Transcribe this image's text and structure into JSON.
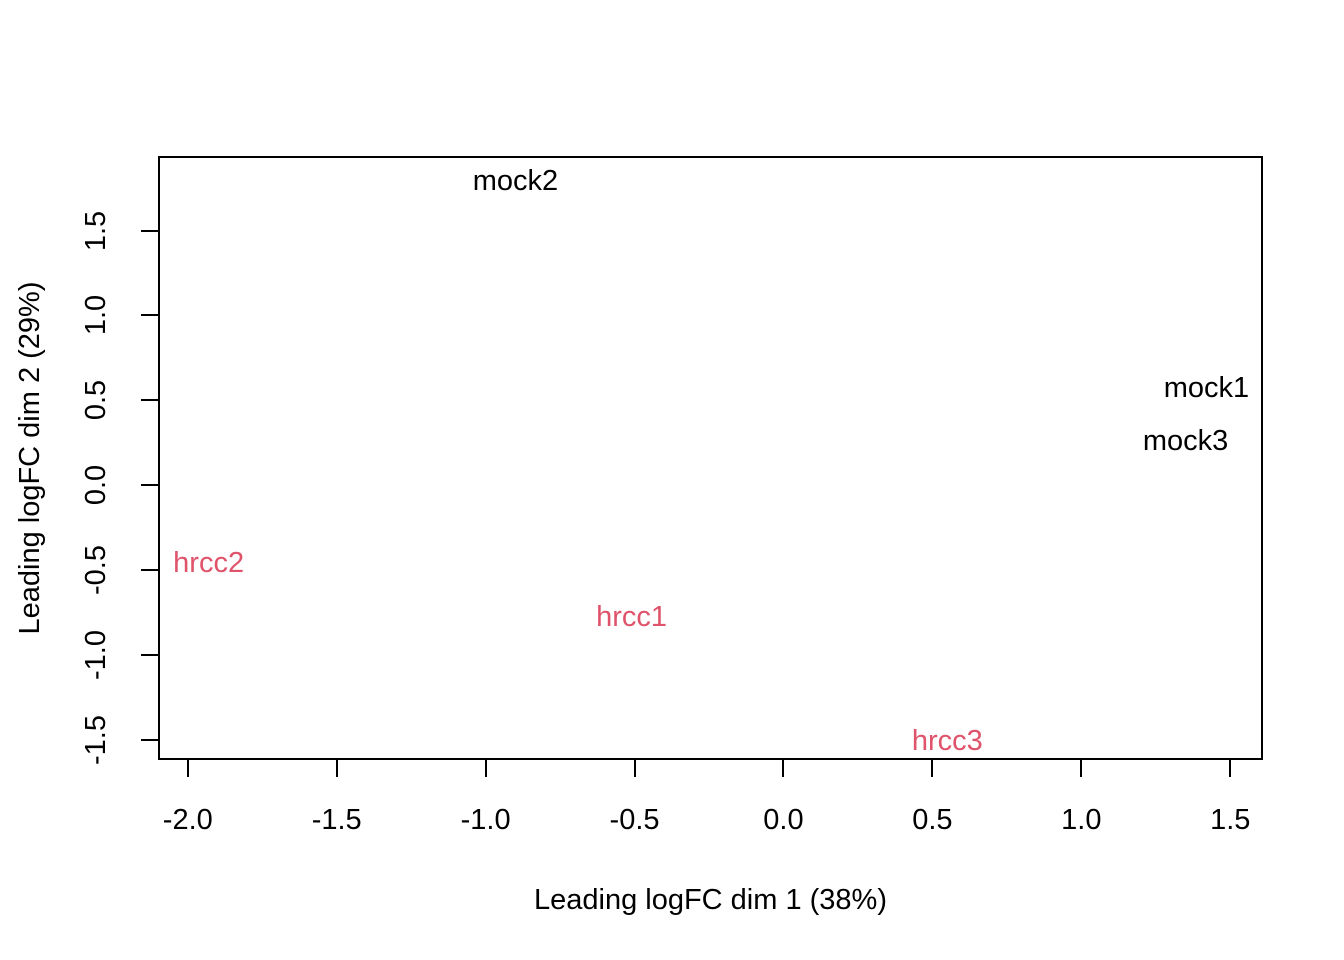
{
  "figure": {
    "background_color": "#ffffff",
    "axis_color": "#000000",
    "text_color": "#000000"
  },
  "chart_data": {
    "type": "scatter",
    "plot_style": "mds-labeled-points",
    "title": "",
    "xlabel": "Leading logFC dim 1 (38%)",
    "ylabel": "Leading logFC dim 2 (29%)",
    "xlim": [
      -2.1,
      1.61
    ],
    "ylim": [
      -1.62,
      1.94
    ],
    "grid": false,
    "legend": null,
    "x_ticks": [
      {
        "value": -2.0,
        "label": "-2.0"
      },
      {
        "value": -1.5,
        "label": "-1.5"
      },
      {
        "value": -1.0,
        "label": "-1.0"
      },
      {
        "value": -0.5,
        "label": "-0.5"
      },
      {
        "value": 0.0,
        "label": "0.0"
      },
      {
        "value": 0.5,
        "label": "0.5"
      },
      {
        "value": 1.0,
        "label": "1.0"
      },
      {
        "value": 1.5,
        "label": "1.5"
      }
    ],
    "y_ticks": [
      {
        "value": -1.5,
        "label": "-1.5"
      },
      {
        "value": -1.0,
        "label": "-1.0"
      },
      {
        "value": -0.5,
        "label": "-0.5"
      },
      {
        "value": 0.0,
        "label": "0.0"
      },
      {
        "value": 0.5,
        "label": "0.5"
      },
      {
        "value": 1.0,
        "label": "1.0"
      },
      {
        "value": 1.5,
        "label": "1.5"
      }
    ],
    "points": [
      {
        "label": "mock2",
        "x": -0.9,
        "y": 1.79,
        "group": "mock",
        "color": "#000000"
      },
      {
        "label": "mock1",
        "x": 1.42,
        "y": 0.57,
        "group": "mock",
        "color": "#000000"
      },
      {
        "label": "mock3",
        "x": 1.35,
        "y": 0.26,
        "group": "mock",
        "color": "#000000"
      },
      {
        "label": "hrcc2",
        "x": -1.93,
        "y": -0.46,
        "group": "hrcc",
        "color": "#DF536B"
      },
      {
        "label": "hrcc1",
        "x": -0.51,
        "y": -0.78,
        "group": "hrcc",
        "color": "#DF536B"
      },
      {
        "label": "hrcc3",
        "x": 0.55,
        "y": -1.51,
        "group": "hrcc",
        "color": "#DF536B"
      }
    ]
  }
}
